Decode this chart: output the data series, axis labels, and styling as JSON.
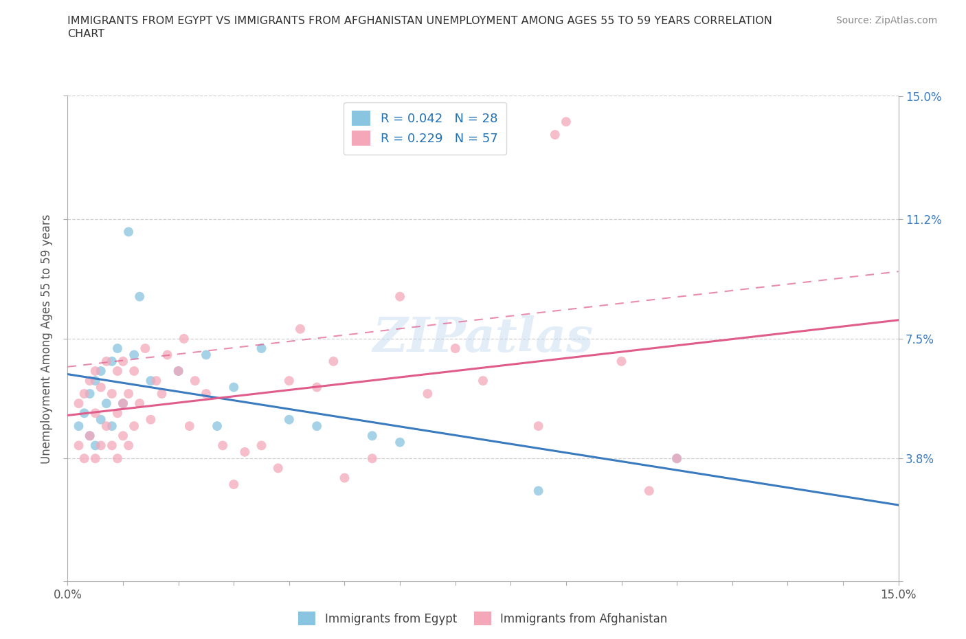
{
  "title_line1": "IMMIGRANTS FROM EGYPT VS IMMIGRANTS FROM AFGHANISTAN UNEMPLOYMENT AMONG AGES 55 TO 59 YEARS CORRELATION",
  "title_line2": "CHART",
  "source": "Source: ZipAtlas.com",
  "ylabel": "Unemployment Among Ages 55 to 59 years",
  "xlim": [
    0.0,
    0.15
  ],
  "ylim": [
    0.0,
    0.15
  ],
  "ytick_values": [
    0.0,
    0.038,
    0.075,
    0.112,
    0.15
  ],
  "ytick_labels": [
    "",
    "3.8%",
    "7.5%",
    "11.2%",
    "15.0%"
  ],
  "color_egypt": "#89c4e1",
  "color_afghanistan": "#f4a7b9",
  "line_color_egypt": "#3a7abf",
  "line_color_afghanistan": "#e05c8a",
  "R_egypt": 0.042,
  "N_egypt": 28,
  "R_afghanistan": 0.229,
  "N_afghanistan": 57,
  "egypt_x": [
    0.002,
    0.003,
    0.004,
    0.004,
    0.005,
    0.005,
    0.006,
    0.006,
    0.007,
    0.008,
    0.008,
    0.009,
    0.01,
    0.011,
    0.012,
    0.013,
    0.015,
    0.02,
    0.025,
    0.027,
    0.03,
    0.035,
    0.04,
    0.045,
    0.055,
    0.06,
    0.085,
    0.11
  ],
  "egypt_y": [
    0.048,
    0.052,
    0.045,
    0.058,
    0.042,
    0.062,
    0.05,
    0.065,
    0.055,
    0.048,
    0.068,
    0.072,
    0.055,
    0.108,
    0.07,
    0.088,
    0.062,
    0.065,
    0.07,
    0.048,
    0.06,
    0.072,
    0.05,
    0.048,
    0.045,
    0.043,
    0.028,
    0.038
  ],
  "afghanistan_x": [
    0.002,
    0.002,
    0.003,
    0.003,
    0.004,
    0.004,
    0.005,
    0.005,
    0.005,
    0.006,
    0.006,
    0.007,
    0.007,
    0.008,
    0.008,
    0.009,
    0.009,
    0.009,
    0.01,
    0.01,
    0.01,
    0.011,
    0.011,
    0.012,
    0.012,
    0.013,
    0.014,
    0.015,
    0.016,
    0.017,
    0.018,
    0.02,
    0.021,
    0.022,
    0.023,
    0.025,
    0.028,
    0.03,
    0.032,
    0.035,
    0.038,
    0.04,
    0.042,
    0.045,
    0.048,
    0.05,
    0.055,
    0.06,
    0.065,
    0.07,
    0.075,
    0.085,
    0.088,
    0.09,
    0.1,
    0.105,
    0.11
  ],
  "afghanistan_y": [
    0.042,
    0.055,
    0.038,
    0.058,
    0.045,
    0.062,
    0.038,
    0.052,
    0.065,
    0.042,
    0.06,
    0.048,
    0.068,
    0.042,
    0.058,
    0.038,
    0.052,
    0.065,
    0.045,
    0.055,
    0.068,
    0.042,
    0.058,
    0.048,
    0.065,
    0.055,
    0.072,
    0.05,
    0.062,
    0.058,
    0.07,
    0.065,
    0.075,
    0.048,
    0.062,
    0.058,
    0.042,
    0.03,
    0.04,
    0.042,
    0.035,
    0.062,
    0.078,
    0.06,
    0.068,
    0.032,
    0.038,
    0.088,
    0.058,
    0.072,
    0.062,
    0.048,
    0.138,
    0.142,
    0.068,
    0.028,
    0.038
  ],
  "watermark": "ZIPatlas",
  "background_color": "#ffffff",
  "grid_color": "#d0d0d0"
}
